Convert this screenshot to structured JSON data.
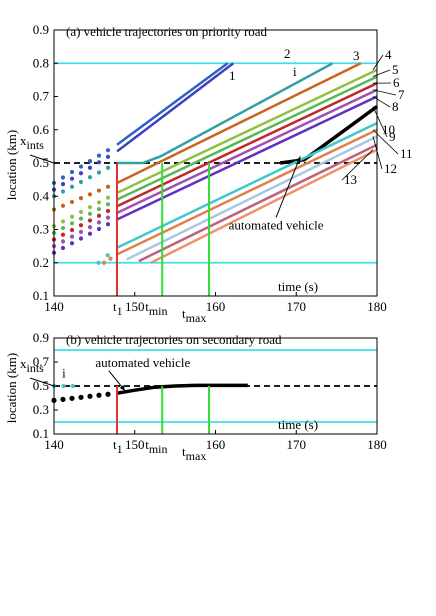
{
  "chart_data": [
    {
      "type": "line",
      "title": "(a) vehicle trajectories on priority road",
      "xlabel": "time (s)",
      "ylabel": "location (km)",
      "xlim": [
        140,
        180
      ],
      "ylim": [
        0.1,
        0.9
      ],
      "xticks": [
        {
          "value": 140,
          "label": "140"
        },
        {
          "value": 150,
          "label": "150"
        },
        {
          "value": 160,
          "label": "160"
        },
        {
          "value": 170,
          "label": "170"
        },
        {
          "value": 180,
          "label": "180"
        }
      ],
      "yticks": [
        {
          "value": 0.1,
          "label": "0.1"
        },
        {
          "value": 0.2,
          "label": "0.2"
        },
        {
          "value": 0.3,
          "label": "0.3"
        },
        {
          "value": 0.4,
          "label": "0.4"
        },
        {
          "value": 0.5,
          "label": "0.5"
        },
        {
          "value": 0.6,
          "label": "0.6"
        },
        {
          "value": 0.7,
          "label": "0.7"
        },
        {
          "value": 0.8,
          "label": "0.8"
        },
        {
          "value": 0.9,
          "label": "0.9"
        }
      ],
      "reference_lines": [
        {
          "axis": "y",
          "value": 0.8,
          "color": "#40e0e8",
          "style": "solid"
        },
        {
          "axis": "y",
          "value": 0.2,
          "color": "#40e0e8",
          "style": "solid"
        },
        {
          "axis": "y",
          "value": 0.5,
          "color": "#000000",
          "style": "dashed"
        },
        {
          "axis": "x",
          "value": 147.8,
          "color": "#e03030",
          "style": "solid",
          "label": "t",
          "sub": "1"
        },
        {
          "axis": "x",
          "value": 153.4,
          "color": "#33dd33",
          "style": "solid",
          "label": "t",
          "sub": "min"
        },
        {
          "axis": "x",
          "value": 159.2,
          "color": "#33dd33",
          "style": "solid",
          "label": "t",
          "sub": "max"
        }
      ],
      "ylabel_marker": {
        "value": 0.5,
        "label": "x",
        "sub": "ints"
      },
      "series": [
        {
          "name": "2",
          "color": "#3060c0",
          "x": [
            147.8,
            161.5
          ],
          "y": [
            0.555,
            0.8
          ],
          "width": 2.5
        },
        {
          "name": "1",
          "color": "#4040c0",
          "x": [
            147.8,
            162.2
          ],
          "y": [
            0.535,
            0.8
          ],
          "width": 2.5
        },
        {
          "name": "i",
          "color": "#30a0a0",
          "x": [
            147.8,
            151.0,
            153.2,
            174.5
          ],
          "y": [
            0.5,
            0.5,
            0.52,
            0.8
          ],
          "width": 2.5
        },
        {
          "name": "3",
          "color": "#c86420",
          "x": [
            147.8,
            178.0
          ],
          "y": [
            0.44,
            0.8
          ],
          "width": 2.5
        },
        {
          "name": "4",
          "color": "#90c040",
          "x": [
            147.8,
            180.0
          ],
          "y": [
            0.41,
            0.78
          ],
          "width": 2.5
        },
        {
          "name": "5",
          "color": "#58b858",
          "x": [
            147.8,
            180.0
          ],
          "y": [
            0.39,
            0.76
          ],
          "width": 2.5
        },
        {
          "name": "6",
          "color": "#c02828",
          "x": [
            147.8,
            180.0
          ],
          "y": [
            0.37,
            0.74
          ],
          "width": 2.5
        },
        {
          "name": "7",
          "color": "#a050b0",
          "x": [
            147.8,
            180.0
          ],
          "y": [
            0.35,
            0.72
          ],
          "width": 2.5
        },
        {
          "name": "8",
          "color": "#6030c0",
          "x": [
            147.8,
            180.0
          ],
          "y": [
            0.33,
            0.7
          ],
          "width": 2.5
        },
        {
          "name": "9",
          "color": "#000000",
          "x": [
            168.0,
            171.0,
            180.0
          ],
          "y": [
            0.5,
            0.51,
            0.67
          ],
          "width": 3.5
        },
        {
          "name": "10",
          "color": "#40c8c8",
          "x": [
            147.8,
            180.0
          ],
          "y": [
            0.245,
            0.62
          ],
          "width": 2.5
        },
        {
          "name": "11",
          "color": "#e08050",
          "x": [
            147.8,
            180.0
          ],
          "y": [
            0.225,
            0.6
          ],
          "width": 2.5
        },
        {
          "name": "12",
          "color": "#a8c8e0",
          "x": [
            149.0,
            180.0
          ],
          "y": [
            0.21,
            0.58
          ],
          "width": 2.5
        },
        {
          "name": "",
          "color": "#c06080",
          "x": [
            150.5,
            180.0
          ],
          "y": [
            0.205,
            0.555
          ],
          "width": 2.5
        },
        {
          "name": "13",
          "color": "#f09068",
          "x": [
            152.0,
            180.0
          ],
          "y": [
            0.2,
            0.54
          ],
          "width": 2.5
        }
      ],
      "dotted_starts": [
        {
          "color": "#3060c0",
          "x0": 140.0,
          "y0": 0.44,
          "x1": 147.8,
          "y1": 0.555
        },
        {
          "color": "#4040c0",
          "x0": 140.0,
          "y0": 0.42,
          "x1": 147.8,
          "y1": 0.535
        },
        {
          "color": "#30a0a0",
          "x0": 140.0,
          "y0": 0.4,
          "x1": 147.8,
          "y1": 0.5
        },
        {
          "color": "#c86420",
          "x0": 140.0,
          "y0": 0.36,
          "x1": 147.8,
          "y1": 0.44
        },
        {
          "color": "#90c040",
          "x0": 140.0,
          "y0": 0.31,
          "x1": 147.8,
          "y1": 0.41
        },
        {
          "color": "#58b858",
          "x0": 140.0,
          "y0": 0.29,
          "x1": 147.8,
          "y1": 0.39
        },
        {
          "color": "#c02828",
          "x0": 140.0,
          "y0": 0.27,
          "x1": 147.8,
          "y1": 0.37
        },
        {
          "color": "#a050b0",
          "x0": 140.0,
          "y0": 0.25,
          "x1": 147.8,
          "y1": 0.35
        },
        {
          "color": "#6030c0",
          "x0": 140.0,
          "y0": 0.23,
          "x1": 147.8,
          "y1": 0.33
        },
        {
          "color": "#40c8c8",
          "x0": 145.5,
          "y0": 0.2,
          "x1": 147.8,
          "y1": 0.245
        },
        {
          "color": "#e08050",
          "x0": 146.2,
          "y0": 0.2,
          "x1": 147.8,
          "y1": 0.225
        }
      ],
      "annotations": [
        {
          "text": "automated vehicle",
          "x": 167.5,
          "y": 0.3,
          "arrow_to": [
            170.5,
            0.52
          ]
        }
      ]
    },
    {
      "type": "line",
      "title": "(b) vehicle trajectories on secondary road",
      "xlabel": "time (s)",
      "ylabel": "location (km)",
      "xlim": [
        140,
        180
      ],
      "ylim": [
        0.1,
        0.9
      ],
      "xticks": [
        {
          "value": 140,
          "label": "140"
        },
        {
          "value": 150,
          "label": "150"
        },
        {
          "value": 160,
          "label": "160"
        },
        {
          "value": 170,
          "label": "170"
        },
        {
          "value": 180,
          "label": "180"
        }
      ],
      "yticks": [
        {
          "value": 0.1,
          "label": "0.1"
        },
        {
          "value": 0.3,
          "label": "0.3"
        },
        {
          "value": 0.5,
          "label": "0.5"
        },
        {
          "value": 0.7,
          "label": "0.7"
        },
        {
          "value": 0.9,
          "label": "0.9"
        }
      ],
      "reference_lines": [
        {
          "axis": "y",
          "value": 0.8,
          "color": "#40e0e8",
          "style": "solid"
        },
        {
          "axis": "y",
          "value": 0.2,
          "color": "#40e0e8",
          "style": "solid"
        },
        {
          "axis": "y",
          "value": 0.5,
          "color": "#000000",
          "style": "dashed"
        },
        {
          "axis": "x",
          "value": 147.8,
          "color": "#e03030",
          "style": "solid",
          "label": "t",
          "sub": "1"
        },
        {
          "axis": "x",
          "value": 153.4,
          "color": "#33dd33",
          "style": "solid",
          "label": "t",
          "sub": "min"
        },
        {
          "axis": "x",
          "value": 159.2,
          "color": "#33dd33",
          "style": "solid",
          "label": "t",
          "sub": "max"
        }
      ],
      "ylabel_marker": {
        "value": 0.5,
        "label": "x",
        "sub": "ints"
      },
      "series": [
        {
          "name": "",
          "color": "#000000",
          "x": [
            147.8,
            150.0,
            152.5,
            155.0,
            157.5,
            160.0,
            164.0
          ],
          "y": [
            0.44,
            0.465,
            0.49,
            0.5,
            0.505,
            0.505,
            0.505
          ],
          "width": 3.5
        }
      ],
      "dotted_starts": [
        {
          "color": "#000000",
          "x0": 140.0,
          "y0": 0.38,
          "x1": 147.8,
          "y1": 0.44
        }
      ],
      "extra_dots": [
        {
          "color": "#40c8c8",
          "x0": 140.0,
          "y0": 0.5,
          "x1": 143.5,
          "y1": 0.5
        }
      ],
      "point_labels": [
        {
          "text": "i",
          "x": 141.0,
          "y": 0.57
        }
      ],
      "annotations": [
        {
          "text": "automated vehicle",
          "x": 151.0,
          "y": 0.66,
          "arrow_to": [
            148.8,
            0.46
          ]
        }
      ]
    }
  ]
}
